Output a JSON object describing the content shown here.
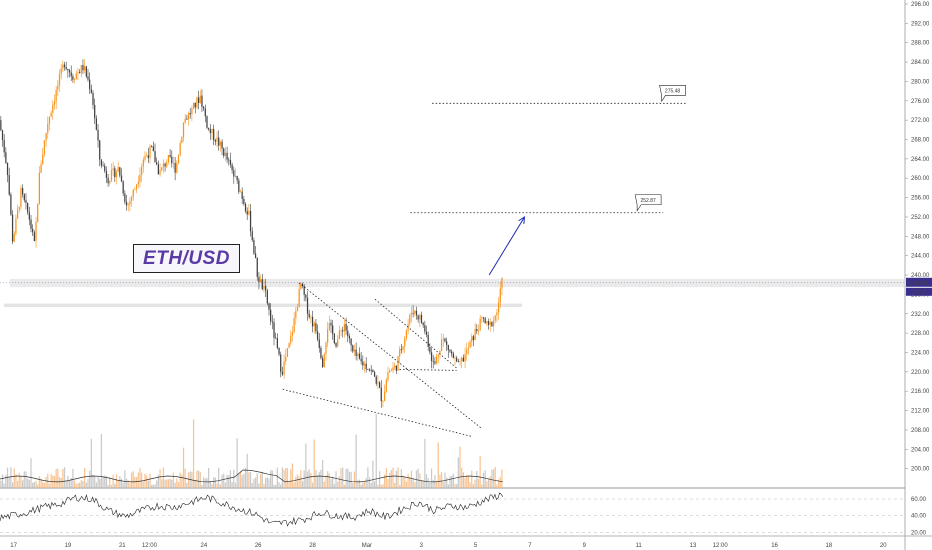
{
  "chart_data": {
    "type": "candlestick",
    "title": "ETH/USD",
    "price_axis": {
      "min": 196,
      "max": 296,
      "ticks": [
        "296.00",
        "292.00",
        "288.00",
        "284.00",
        "280.00",
        "276.00",
        "272.00",
        "268.00",
        "264.00",
        "260.00",
        "256.00",
        "252.00",
        "248.00",
        "244.00",
        "240.00",
        "236.00",
        "232.00",
        "228.00",
        "224.00",
        "220.00",
        "216.00",
        "212.00",
        "208.00",
        "204.00",
        "200.00"
      ],
      "last_price": "238.40",
      "countdown": "00:09"
    },
    "oscillator_axis": {
      "min": 18,
      "max": 72,
      "ticks": [
        "60.00",
        "40.00",
        "20.00"
      ]
    },
    "time_axis": {
      "labels": [
        {
          "text": "17",
          "t": 0.5
        },
        {
          "text": "19",
          "t": 2.5
        },
        {
          "text": "21",
          "t": 4.5
        },
        {
          "text": "12:00",
          "t": 5.5
        },
        {
          "text": "24",
          "t": 7.5
        },
        {
          "text": "26",
          "t": 9.5
        },
        {
          "text": "28",
          "t": 11.5
        },
        {
          "text": "Mar",
          "t": 13.5
        },
        {
          "text": "3",
          "t": 15.5
        },
        {
          "text": "5",
          "t": 17.5
        },
        {
          "text": "7",
          "t": 19.5
        },
        {
          "text": "9",
          "t": 21.5
        },
        {
          "text": "11",
          "t": 23.5
        },
        {
          "text": "13",
          "t": 25.5
        },
        {
          "text": "12:00",
          "t": 26.5
        },
        {
          "text": "16",
          "t": 28.5
        },
        {
          "text": "18",
          "t": 30.5
        },
        {
          "text": "20",
          "t": 32.5
        }
      ],
      "t_min": 0,
      "t_max": 33.3
    },
    "price_path": [
      [
        0.0,
        272
      ],
      [
        0.3,
        262
      ],
      [
        0.5,
        247
      ],
      [
        0.8,
        257
      ],
      [
        1.1,
        252
      ],
      [
        1.3,
        246
      ],
      [
        1.5,
        262
      ],
      [
        1.8,
        272
      ],
      [
        2.1,
        278
      ],
      [
        2.4,
        284
      ],
      [
        2.7,
        281
      ],
      [
        3.1,
        283
      ],
      [
        3.4,
        278
      ],
      [
        3.7,
        264
      ],
      [
        4.0,
        260
      ],
      [
        4.4,
        262
      ],
      [
        4.7,
        254
      ],
      [
        5.0,
        258
      ],
      [
        5.3,
        264
      ],
      [
        5.6,
        266
      ],
      [
        5.9,
        261
      ],
      [
        6.2,
        264
      ],
      [
        6.5,
        262
      ],
      [
        6.8,
        272
      ],
      [
        7.1,
        274
      ],
      [
        7.4,
        277
      ],
      [
        7.7,
        270
      ],
      [
        8.0,
        268
      ],
      [
        8.3,
        265
      ],
      [
        8.6,
        261
      ],
      [
        8.9,
        257
      ],
      [
        9.2,
        252
      ],
      [
        9.5,
        240
      ],
      [
        9.8,
        236
      ],
      [
        10.1,
        228
      ],
      [
        10.4,
        220
      ],
      [
        10.7,
        226
      ],
      [
        10.9,
        232
      ],
      [
        11.1,
        238
      ],
      [
        11.4,
        232
      ],
      [
        11.7,
        228
      ],
      [
        11.9,
        222
      ],
      [
        12.1,
        230
      ],
      [
        12.4,
        226
      ],
      [
        12.7,
        230
      ],
      [
        13.0,
        224
      ],
      [
        13.3,
        222
      ],
      [
        13.6,
        221
      ],
      [
        13.9,
        218
      ],
      [
        14.1,
        214
      ],
      [
        14.3,
        220
      ],
      [
        14.6,
        221
      ],
      [
        14.9,
        227
      ],
      [
        15.2,
        233
      ],
      [
        15.5,
        231
      ],
      [
        15.7,
        228
      ],
      [
        16.0,
        221
      ],
      [
        16.3,
        227
      ],
      [
        16.6,
        224
      ],
      [
        16.9,
        221
      ],
      [
        17.2,
        224
      ],
      [
        17.5,
        228
      ],
      [
        17.8,
        231
      ],
      [
        18.0,
        229
      ],
      [
        18.3,
        232
      ],
      [
        18.5,
        238.4
      ]
    ],
    "oscillator_path": [
      [
        0.0,
        37
      ],
      [
        1.0,
        44
      ],
      [
        1.6,
        50
      ],
      [
        2.2,
        54
      ],
      [
        2.8,
        62
      ],
      [
        3.4,
        60
      ],
      [
        4.0,
        46
      ],
      [
        4.6,
        39
      ],
      [
        5.2,
        46
      ],
      [
        5.8,
        52
      ],
      [
        6.4,
        50
      ],
      [
        7.0,
        56
      ],
      [
        7.6,
        62
      ],
      [
        8.2,
        55
      ],
      [
        8.8,
        48
      ],
      [
        9.4,
        42
      ],
      [
        10.0,
        30
      ],
      [
        10.6,
        32
      ],
      [
        11.2,
        36
      ],
      [
        11.8,
        44
      ],
      [
        12.4,
        40
      ],
      [
        13.0,
        38
      ],
      [
        13.6,
        46
      ],
      [
        14.2,
        38
      ],
      [
        14.8,
        48
      ],
      [
        15.4,
        56
      ],
      [
        16.0,
        46
      ],
      [
        16.6,
        52
      ],
      [
        17.2,
        50
      ],
      [
        17.8,
        58
      ],
      [
        18.5,
        66
      ]
    ],
    "annotations": {
      "target_labels": [
        {
          "text": "275.48",
          "price": 275.48,
          "t_start": 15.9,
          "t_end": 25.3
        },
        {
          "text": "252.87",
          "price": 252.87,
          "t_start": 15.1,
          "t_end": 24.4
        }
      ],
      "resistance_band_upper": {
        "price_low": 237.5,
        "price_high": 239.2
      },
      "resistance_band_lower": {
        "price_low": 233.4,
        "price_high": 234.1
      },
      "wedge_upper": [
        [
          11.0,
          238.4
        ],
        [
          17.7,
          208.4
        ]
      ],
      "wedge_lower": [
        [
          10.4,
          216.4
        ],
        [
          17.4,
          206.6
        ]
      ],
      "flag_upper": [
        [
          13.8,
          235.0
        ],
        [
          16.8,
          220.8
        ]
      ],
      "flag_lower": [
        [
          14.7,
          220.5
        ],
        [
          16.8,
          220.3
        ]
      ],
      "arrow": [
        [
          18.0,
          240.0
        ],
        [
          19.3,
          252.0
        ]
      ]
    }
  },
  "overlay": {
    "pair_label": "ETH/USD"
  },
  "colors": {
    "up": "#f7931a",
    "down": "#404040",
    "arrow": "#1a2eb0",
    "axis_text": "#444444",
    "price_badge": "#3a2f8c"
  }
}
